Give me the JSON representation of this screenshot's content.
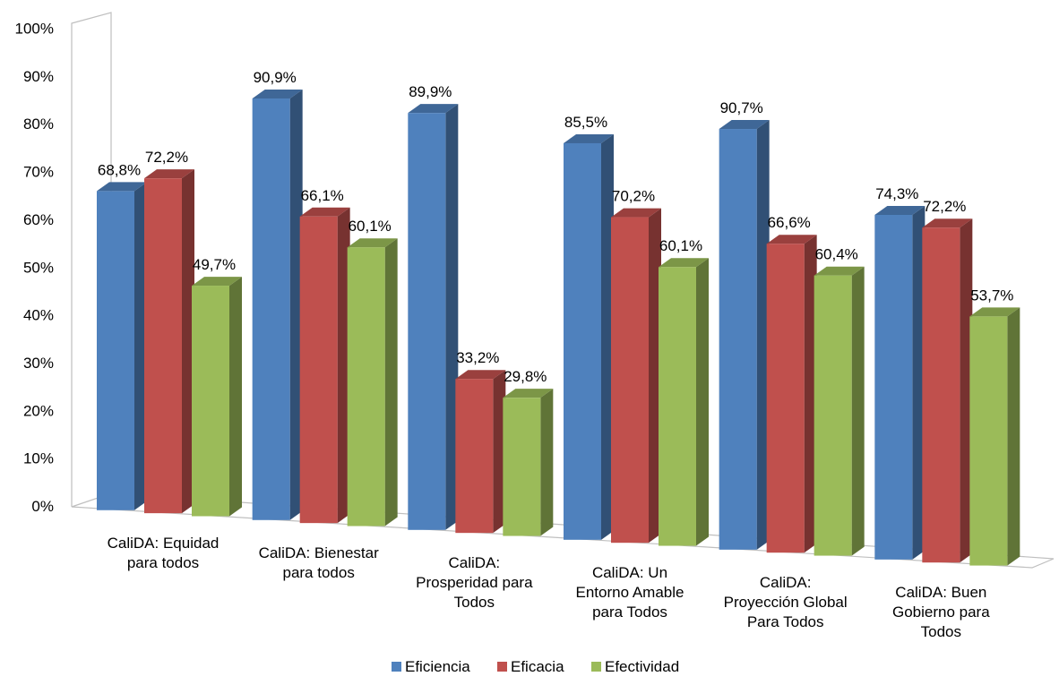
{
  "chart_data": {
    "type": "bar",
    "title": "",
    "xlabel": "",
    "ylabel": "",
    "ylim": [
      0,
      1
    ],
    "yticks": [
      "0%",
      "10%",
      "20%",
      "30%",
      "40%",
      "50%",
      "60%",
      "70%",
      "80%",
      "90%",
      "100%"
    ],
    "categories": [
      [
        "CaliDA: Equidad",
        "para todos"
      ],
      [
        "CaliDA: Bienestar",
        "para todos"
      ],
      [
        "CaliDA:",
        "Prosperidad para",
        "Todos"
      ],
      [
        "CaliDA: Un",
        "Entorno Amable",
        "para Todos"
      ],
      [
        "CaliDA:",
        "Proyección Global",
        "Para Todos"
      ],
      [
        "CaliDA: Buen",
        "Gobierno para",
        "Todos"
      ]
    ],
    "series": [
      {
        "name": "Eficiencia",
        "color": "#4F81BD",
        "values": [
          0.688,
          0.909,
          0.899,
          0.855,
          0.907,
          0.743
        ],
        "labels": [
          "68,8%",
          "90,9%",
          "89,9%",
          "85,5%",
          "90,7%",
          "74,3%"
        ]
      },
      {
        "name": "Eficacia",
        "color": "#C0504D",
        "values": [
          0.722,
          0.661,
          0.332,
          0.702,
          0.666,
          0.722
        ],
        "labels": [
          "72,2%",
          "66,1%",
          "33,2%",
          "70,2%",
          "66,6%",
          "72,2%"
        ]
      },
      {
        "name": "Efectividad",
        "color": "#9BBB59",
        "values": [
          0.497,
          0.601,
          0.298,
          0.601,
          0.604,
          0.537
        ],
        "labels": [
          "49,7%",
          "60,1%",
          "29,8%",
          "60,1%",
          "60,4%",
          "53,7%"
        ]
      }
    ],
    "legend": "bottom",
    "grid": false
  }
}
